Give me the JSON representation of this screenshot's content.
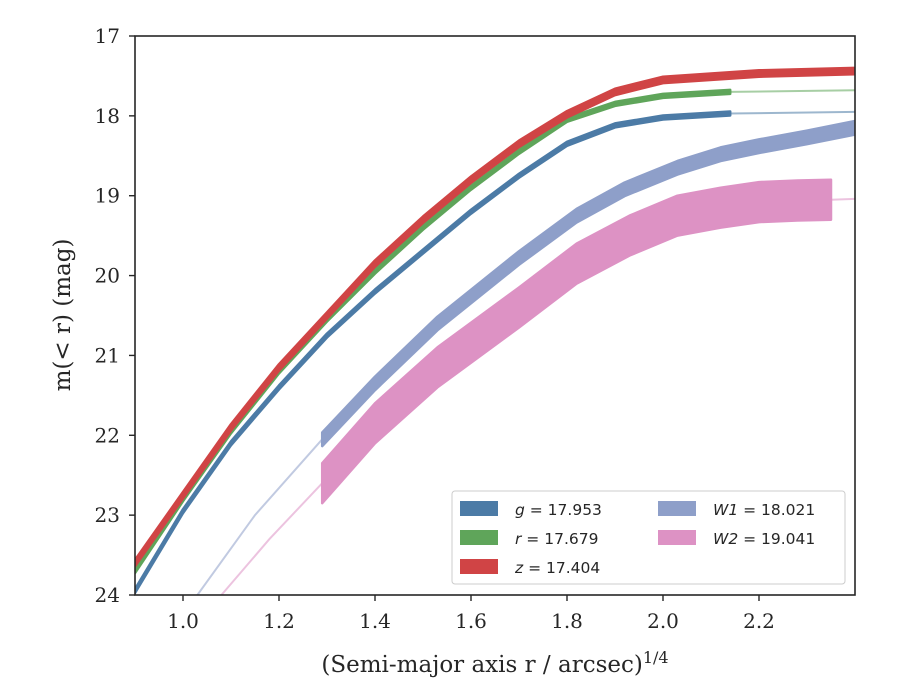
{
  "chart_data": {
    "type": "line",
    "xlabel": "(Semi-major axis r / arcsec)",
    "xlabel_sup": "1/4",
    "ylabel": "m(< r) (mag)",
    "xlim": [
      0.9,
      2.4
    ],
    "ylim": [
      24,
      17
    ],
    "y_inverted": true,
    "grid": false,
    "legend_position": "lower-right",
    "xticks": [
      1.0,
      1.2,
      1.4,
      1.6,
      1.8,
      2.0,
      2.2
    ],
    "xtick_labels": [
      "1.0",
      "1.2",
      "1.4",
      "1.6",
      "1.8",
      "2.0",
      "2.2"
    ],
    "yticks": [
      17,
      18,
      19,
      20,
      21,
      22,
      23,
      24
    ],
    "ytick_labels": [
      "17",
      "18",
      "19",
      "20",
      "21",
      "22",
      "23",
      "24"
    ],
    "series": [
      {
        "name": "g = 17.953",
        "label_var": "g",
        "label_val": " = 17.953",
        "color": "#4c7ba6",
        "x": [
          0.9,
          1.0,
          1.1,
          1.2,
          1.3,
          1.4,
          1.5,
          1.6,
          1.7,
          1.8,
          1.9,
          2.0,
          2.14,
          2.4
        ],
        "y": [
          23.95,
          22.95,
          22.1,
          21.4,
          20.75,
          20.2,
          19.7,
          19.2,
          18.75,
          18.35,
          18.12,
          18.02,
          17.97,
          17.95
        ],
        "band": 0.05,
        "measured_from": 0.9,
        "measured_to": 2.14
      },
      {
        "name": "r = 17.679",
        "label_var": "r",
        "label_val": " = 17.679",
        "color": "#5fa55a",
        "x": [
          0.9,
          1.0,
          1.1,
          1.2,
          1.3,
          1.4,
          1.5,
          1.6,
          1.7,
          1.8,
          1.9,
          2.0,
          2.14,
          2.4
        ],
        "y": [
          23.7,
          22.8,
          21.95,
          21.2,
          20.55,
          19.95,
          19.4,
          18.9,
          18.45,
          18.05,
          17.85,
          17.75,
          17.7,
          17.68
        ],
        "band": 0.05,
        "measured_from": 0.9,
        "measured_to": 2.14
      },
      {
        "name": "z = 17.404",
        "label_var": "z",
        "label_val": " = 17.404",
        "color": "#d04445",
        "x": [
          0.9,
          1.0,
          1.1,
          1.2,
          1.3,
          1.4,
          1.5,
          1.6,
          1.7,
          1.8,
          1.9,
          2.0,
          2.2,
          2.4
        ],
        "y": [
          23.6,
          22.75,
          21.9,
          21.15,
          20.5,
          19.85,
          19.3,
          18.8,
          18.35,
          17.98,
          17.7,
          17.55,
          17.47,
          17.44
        ],
        "band": 0.08,
        "measured_from": 0.9,
        "measured_to": 2.4
      },
      {
        "name": "W1 = 18.021",
        "label_var": "W1",
        "label_val": " = 18.021",
        "color": "#8e9fc9",
        "x": [
          1.03,
          1.15,
          1.29,
          1.4,
          1.53,
          1.7,
          1.82,
          1.92,
          2.03,
          2.12,
          2.2,
          2.3,
          2.4
        ],
        "y": [
          24.0,
          23.0,
          22.05,
          21.35,
          20.6,
          19.78,
          19.25,
          18.92,
          18.65,
          18.48,
          18.38,
          18.27,
          18.15
        ],
        "band": 0.17,
        "measured_from": 1.29,
        "measured_to": 2.4
      },
      {
        "name": "W2 = 19.041",
        "label_var": "W2",
        "label_val": " = 19.041",
        "color": "#dd92c4",
        "x": [
          1.08,
          1.18,
          1.29,
          1.4,
          1.53,
          1.7,
          1.82,
          1.93,
          2.03,
          2.12,
          2.2,
          2.28,
          2.35,
          2.4
        ],
        "y": [
          24.0,
          23.3,
          22.6,
          21.85,
          21.15,
          20.4,
          19.85,
          19.5,
          19.25,
          19.15,
          19.08,
          19.06,
          19.05,
          19.04
        ],
        "band": 0.5,
        "measured_from": 1.29,
        "measured_to": 2.35
      }
    ]
  }
}
